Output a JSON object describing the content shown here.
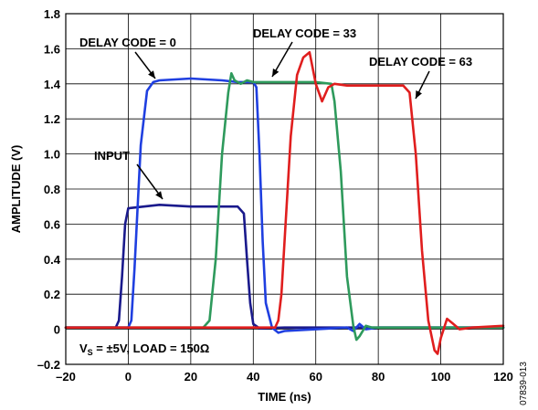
{
  "chart_data": {
    "type": "line",
    "xlabel": "TIME (ns)",
    "ylabel": "AMPLITUDE (V)",
    "xlim": [
      -20,
      120
    ],
    "ylim": [
      -0.2,
      1.8
    ],
    "xticks": [
      -20,
      0,
      20,
      40,
      60,
      80,
      100,
      120
    ],
    "yticks": [
      -0.2,
      0,
      0.2,
      0.4,
      0.6,
      0.8,
      1.0,
      1.2,
      1.4,
      1.6,
      1.8
    ],
    "xtick_labels": [
      "–20",
      "0",
      "20",
      "40",
      "60",
      "80",
      "100",
      "120"
    ],
    "ytick_labels": [
      "–0.2",
      "0",
      "0.2",
      "0.4",
      "0.6",
      "0.8",
      "1.0",
      "1.2",
      "1.4",
      "1.6",
      "1.8"
    ],
    "grid": true,
    "series": [
      {
        "name": "INPUT",
        "color": "#1a1a8c",
        "x": [
          -20,
          -4,
          -3,
          -2,
          -1,
          0,
          5,
          10,
          20,
          30,
          35,
          37,
          38,
          39,
          40,
          42,
          50,
          60,
          80,
          100,
          120
        ],
        "y": [
          0.01,
          0.01,
          0.05,
          0.3,
          0.6,
          0.69,
          0.7,
          0.71,
          0.7,
          0.7,
          0.7,
          0.66,
          0.4,
          0.15,
          0.03,
          0.005,
          0.01,
          0.01,
          0.01,
          0.01,
          0.01
        ]
      },
      {
        "name": "DELAY CODE = 0",
        "color": "#1f3fe0",
        "x": [
          -20,
          0,
          1,
          2,
          4,
          6,
          8,
          10,
          20,
          30,
          35,
          40,
          41,
          42,
          43,
          44,
          46,
          48,
          50,
          60,
          70,
          72,
          74,
          76,
          80,
          100,
          120
        ],
        "y": [
          0.01,
          0.01,
          0.05,
          0.35,
          1.05,
          1.36,
          1.41,
          1.42,
          1.43,
          1.42,
          1.41,
          1.41,
          1.38,
          1.0,
          0.5,
          0.15,
          0.01,
          -0.02,
          -0.01,
          0.0,
          0.01,
          -0.01,
          0.03,
          0.0,
          0.01,
          0.01,
          0.01
        ]
      },
      {
        "name": "DELAY CODE = 33",
        "color": "#2e9a5c",
        "x": [
          -20,
          20,
          24,
          26,
          28,
          30,
          32,
          33,
          34,
          36,
          38,
          40,
          50,
          60,
          65,
          66,
          68,
          70,
          72,
          73,
          74,
          76,
          78,
          80,
          100,
          120
        ],
        "y": [
          0.01,
          0.01,
          0.01,
          0.05,
          0.4,
          1.0,
          1.35,
          1.46,
          1.42,
          1.4,
          1.42,
          1.41,
          1.41,
          1.41,
          1.4,
          1.3,
          0.9,
          0.3,
          0.02,
          -0.06,
          -0.04,
          0.02,
          0.01,
          0.01,
          0.01,
          0.01
        ]
      },
      {
        "name": "DELAY CODE = 63",
        "color": "#e01e1e",
        "x": [
          -20,
          20,
          40,
          47,
          48,
          49,
          50,
          52,
          54,
          56,
          58,
          60,
          62,
          64,
          66,
          70,
          80,
          88,
          90,
          92,
          94,
          96,
          98,
          99,
          100,
          102,
          104,
          106,
          110,
          120
        ],
        "y": [
          0.01,
          0.01,
          0.01,
          0.01,
          0.05,
          0.2,
          0.5,
          1.1,
          1.45,
          1.55,
          1.58,
          1.4,
          1.3,
          1.38,
          1.4,
          1.39,
          1.39,
          1.39,
          1.35,
          1.0,
          0.45,
          0.05,
          -0.12,
          -0.14,
          -0.05,
          0.06,
          0.03,
          0.0,
          0.01,
          0.02
        ]
      }
    ],
    "annotations": [
      {
        "id": "ann-delay-0",
        "text": "DELAY CODE = 0"
      },
      {
        "id": "ann-delay-33",
        "text": "DELAY CODE = 33"
      },
      {
        "id": "ann-delay-63",
        "text": "DELAY CODE = 63"
      },
      {
        "id": "ann-input",
        "text": "INPUT"
      }
    ],
    "conditions_label": {
      "prefix": "V",
      "sub": "S",
      "suffix": " = ±5V, LOAD = 150Ω"
    },
    "figure_id": "07839-013"
  }
}
